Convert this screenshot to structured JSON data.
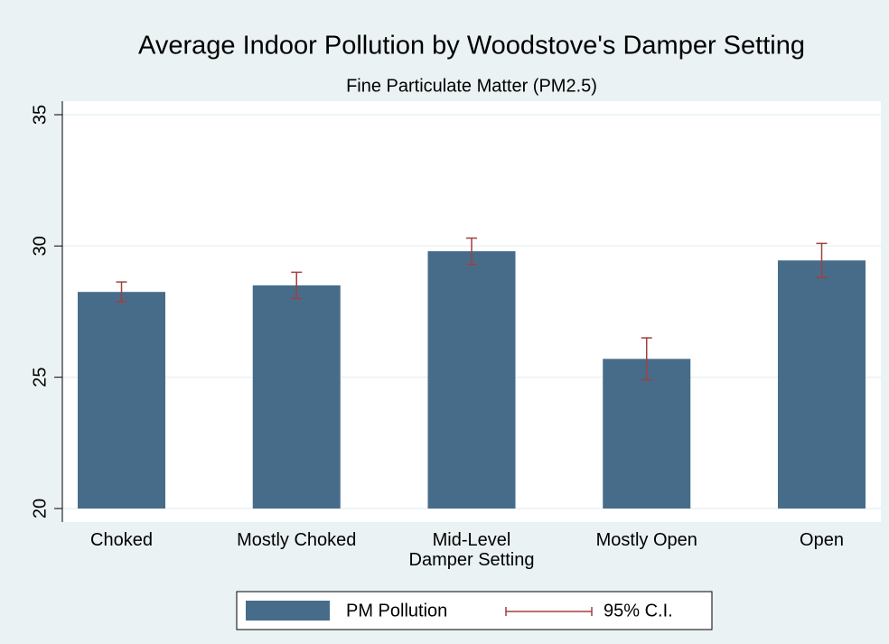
{
  "chart_data": {
    "type": "bar",
    "title": "Average Indoor Pollution by Woodstove's Damper Setting",
    "subtitle": "Fine Particulate Matter (PM2.5)",
    "categories": [
      "Choked",
      "Mostly Choked",
      "Mid-Level\nDamper Setting",
      "Mostly Open",
      "Open"
    ],
    "series": [
      {
        "name": "PM Pollution",
        "color": "#476c8a",
        "values": [
          28.25,
          28.5,
          29.8,
          25.7,
          29.45
        ]
      },
      {
        "name": "95% C.I.",
        "color": "#a0403e",
        "values": [
          0.38,
          0.5,
          0.5,
          0.8,
          0.65
        ]
      }
    ],
    "ylim": [
      20,
      35
    ],
    "yticks": [
      20,
      25,
      30,
      35
    ],
    "grid": true,
    "legend": "bottom"
  }
}
